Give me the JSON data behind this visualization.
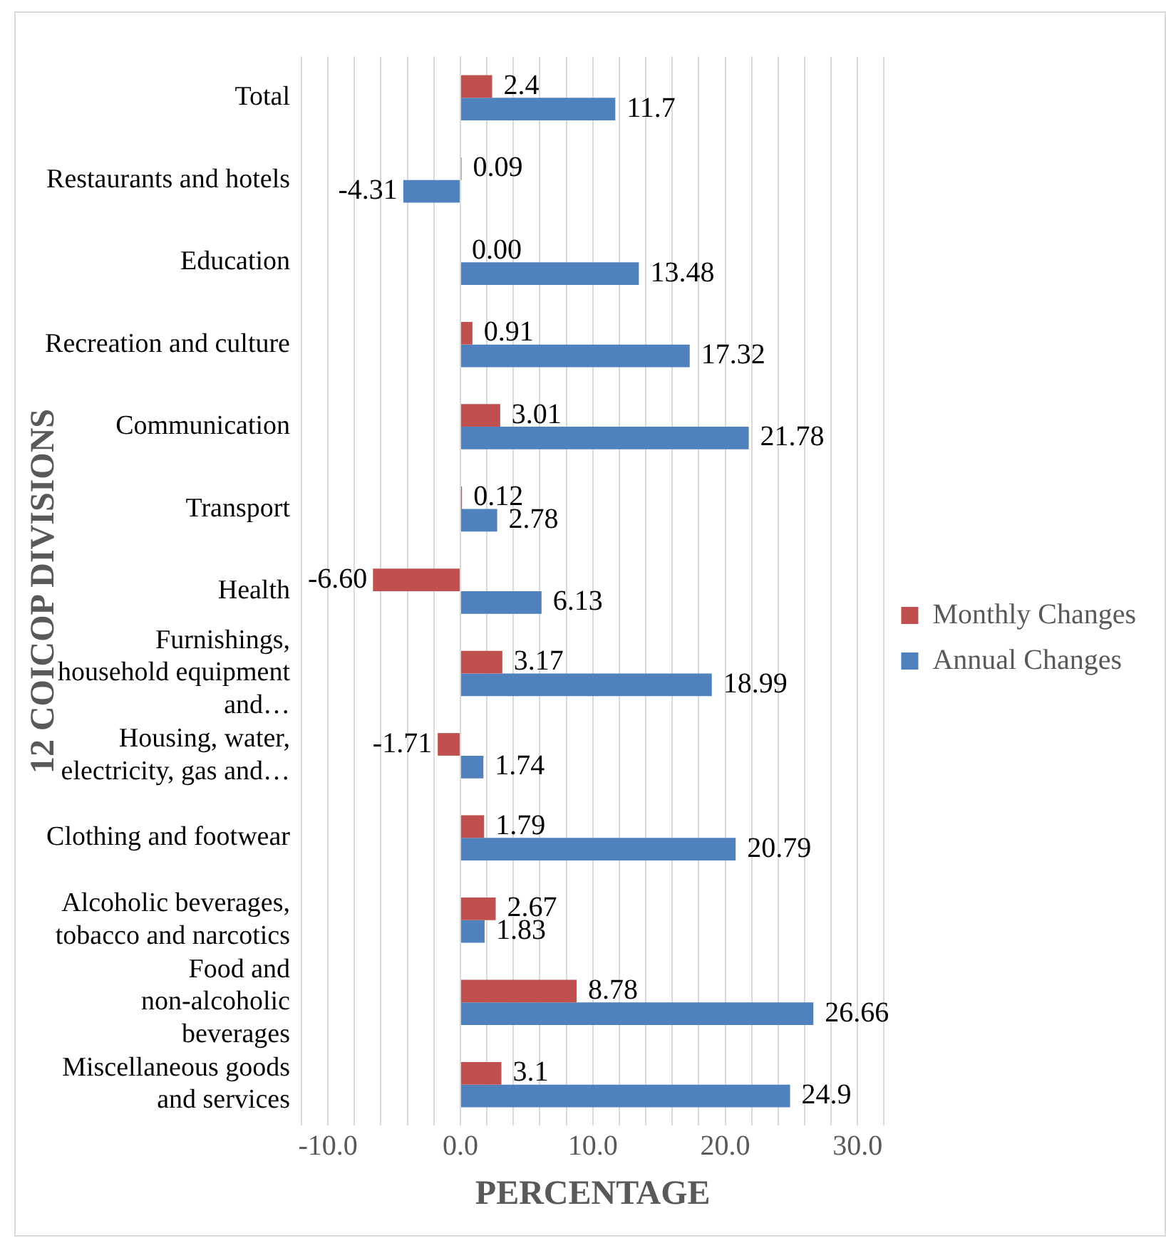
{
  "chart_data": {
    "type": "bar",
    "orientation": "horizontal",
    "xlabel": "PERCENTAGE",
    "ylabel": "12 COICOP DIVISIONS",
    "categories": [
      "Total",
      "Restaurants and hotels",
      "Education",
      "Recreation and culture",
      "Communication",
      "Transport",
      "Health",
      "Furnishings, household equipment and…",
      "Housing, water, electricity, gas and…",
      "Clothing and footwear",
      "Alcoholic beverages, tobacco and narcotics",
      "Food and non-alcoholic beverages",
      "Miscellaneous goods and services"
    ],
    "series": [
      {
        "name": "Monthly Changes",
        "color": "#c0504d",
        "values": [
          2.4,
          0.09,
          0.0,
          0.91,
          3.01,
          0.12,
          -6.6,
          3.17,
          -1.71,
          1.79,
          2.67,
          8.78,
          3.1
        ],
        "value_labels": [
          "2.4",
          "0.09",
          "0.00",
          "0.91",
          "3.01",
          "0.12",
          "-6.60",
          "3.17",
          "-1.71",
          "1.79",
          "2.67",
          "8.78",
          "3.1"
        ]
      },
      {
        "name": "Annual Changes",
        "color": "#4f81bd",
        "values": [
          11.7,
          -4.31,
          13.48,
          17.32,
          21.78,
          2.78,
          6.13,
          18.99,
          1.74,
          20.79,
          1.83,
          26.66,
          24.9
        ],
        "value_labels": [
          "11.7",
          "-4.31",
          "13.48",
          "17.32",
          "21.78",
          "2.78",
          "6.13",
          "18.99",
          "1.74",
          "20.79",
          "1.83",
          "26.66",
          "24.9"
        ]
      }
    ],
    "xlim": [
      -12,
      32
    ],
    "xticks": [
      {
        "value": -12,
        "label": null
      },
      {
        "value": -10,
        "label": "-10.0"
      },
      {
        "value": -8,
        "label": null
      },
      {
        "value": -6,
        "label": null
      },
      {
        "value": -4,
        "label": null
      },
      {
        "value": -2,
        "label": null
      },
      {
        "value": 0,
        "label": "0.0"
      },
      {
        "value": 2,
        "label": null
      },
      {
        "value": 4,
        "label": null
      },
      {
        "value": 6,
        "label": null
      },
      {
        "value": 8,
        "label": null
      },
      {
        "value": 10,
        "label": "10.0"
      },
      {
        "value": 12,
        "label": null
      },
      {
        "value": 14,
        "label": null
      },
      {
        "value": 16,
        "label": null
      },
      {
        "value": 18,
        "label": null
      },
      {
        "value": 20,
        "label": "20.0"
      },
      {
        "value": 22,
        "label": null
      },
      {
        "value": 24,
        "label": null
      },
      {
        "value": 26,
        "label": null
      },
      {
        "value": 28,
        "label": null
      },
      {
        "value": 30,
        "label": "30.0"
      },
      {
        "value": 32,
        "label": null
      }
    ],
    "grid": "x",
    "legend": "right"
  }
}
